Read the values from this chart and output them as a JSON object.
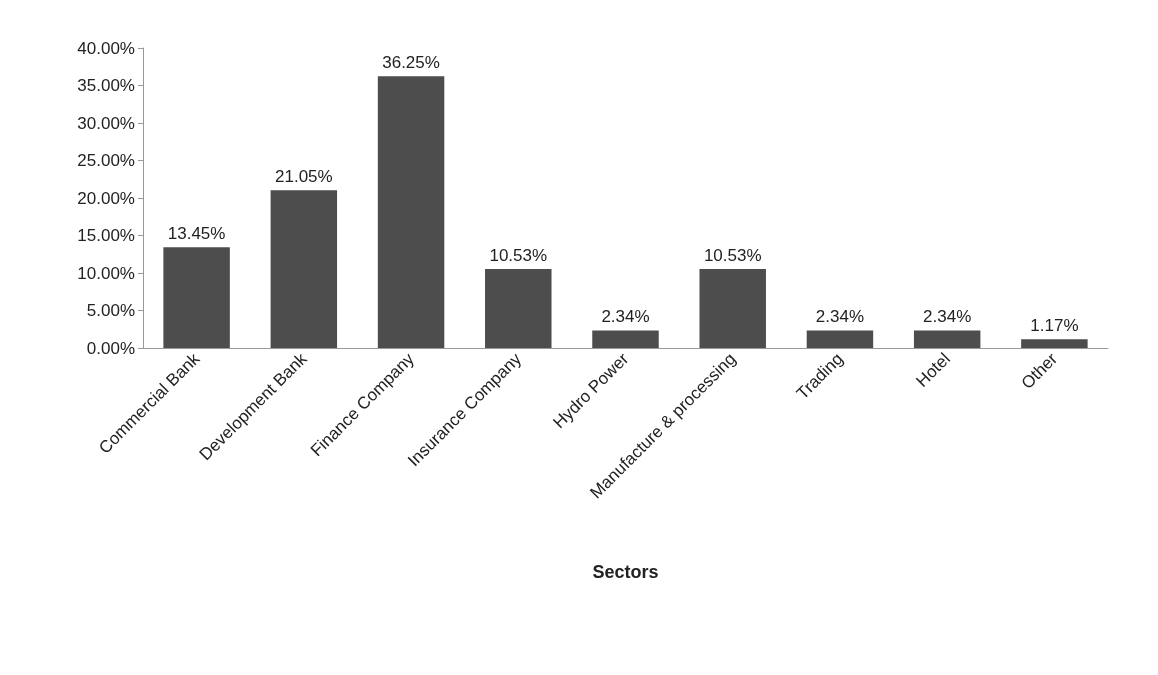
{
  "chart_data": {
    "type": "bar",
    "xlabel": "Sectors",
    "categories": [
      "Commercial Bank",
      "Development Bank",
      "Finance Company",
      "Insurance Company",
      "Hydro Power",
      "Manufacture & processing",
      "Trading",
      "Hotel",
      "Other"
    ],
    "values": [
      13.45,
      21.05,
      36.25,
      10.53,
      2.34,
      10.53,
      2.34,
      2.34,
      1.17
    ],
    "value_labels": [
      "13.45%",
      "21.05%",
      "36.25%",
      "10.53%",
      "2.34%",
      "10.53%",
      "2.34%",
      "2.34%",
      "1.17%"
    ],
    "color": "#4d4d4d",
    "ylim": [
      0,
      40
    ],
    "yticks": [
      {
        "value": 0,
        "label": "0.00%"
      },
      {
        "value": 5,
        "label": "5.00%"
      },
      {
        "value": 10,
        "label": "10.00%"
      },
      {
        "value": 15,
        "label": "15.00%"
      },
      {
        "value": 20,
        "label": "20.00%"
      },
      {
        "value": 25,
        "label": "25.00%"
      },
      {
        "value": 30,
        "label": "30.00%"
      },
      {
        "value": 35,
        "label": "35.00%"
      },
      {
        "value": 40,
        "label": "40.00%"
      }
    ],
    "grid": false
  }
}
